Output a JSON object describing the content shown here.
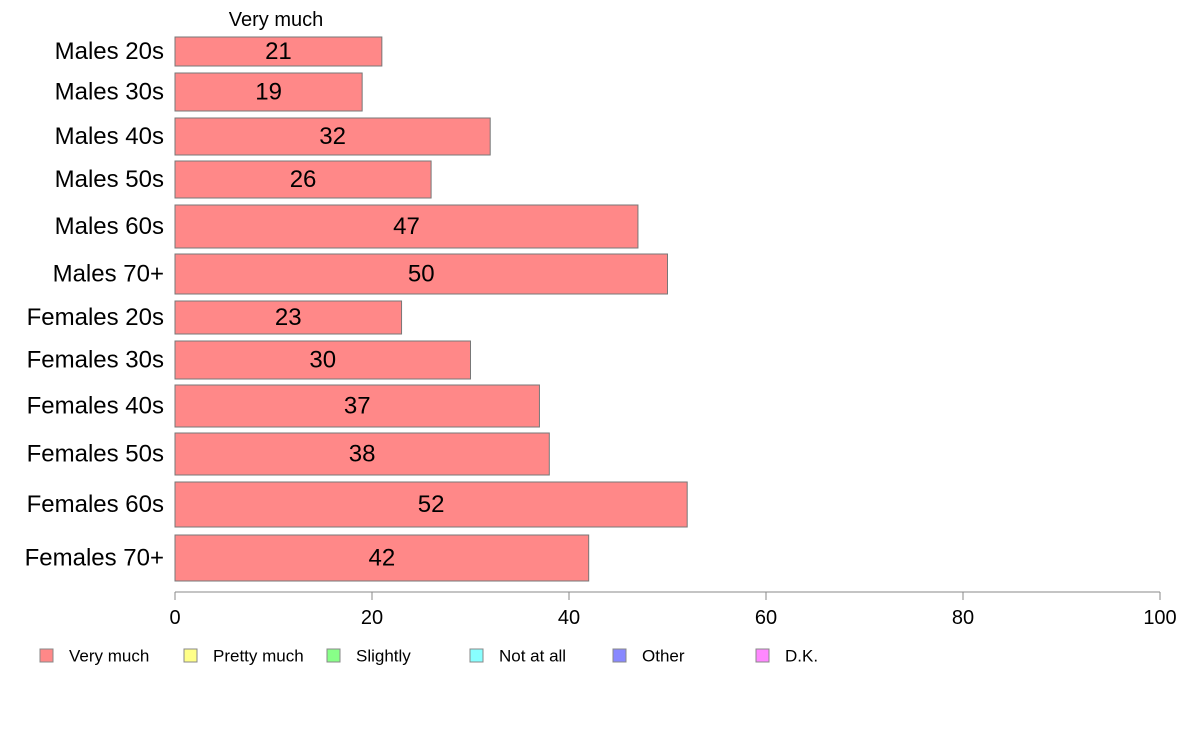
{
  "chart_data": {
    "type": "bar",
    "orientation": "horizontal",
    "stacked": true,
    "categories": [
      "Males 20s",
      "Males 30s",
      "Males 40s",
      "Males 50s",
      "Males 60s",
      "Males 70+",
      "Females 20s",
      "Females 30s",
      "Females 40s",
      "Females 50s",
      "Females 60s",
      "Females 70+"
    ],
    "series": [
      {
        "name": "Very much",
        "color": "#ff8888",
        "values": [
          21,
          19,
          32,
          26,
          47,
          50,
          23,
          30,
          37,
          38,
          52,
          42
        ]
      }
    ],
    "shown_header": "Very much",
    "xlim": [
      0,
      100
    ],
    "xticks": [
      0,
      20,
      40,
      60,
      80,
      100
    ],
    "grid": false,
    "legend": {
      "placement": "bottom",
      "entries": [
        {
          "name": "Very much",
          "color": "#ff8888"
        },
        {
          "name": "Pretty much",
          "color": "#ffff88"
        },
        {
          "name": "Slightly",
          "color": "#88ff88"
        },
        {
          "name": "Not at all",
          "color": "#88ffff"
        },
        {
          "name": "Other",
          "color": "#8888ff"
        },
        {
          "name": "D.K.",
          "color": "#ff88ff"
        }
      ]
    },
    "title": "",
    "xlabel": "",
    "ylabel": ""
  }
}
